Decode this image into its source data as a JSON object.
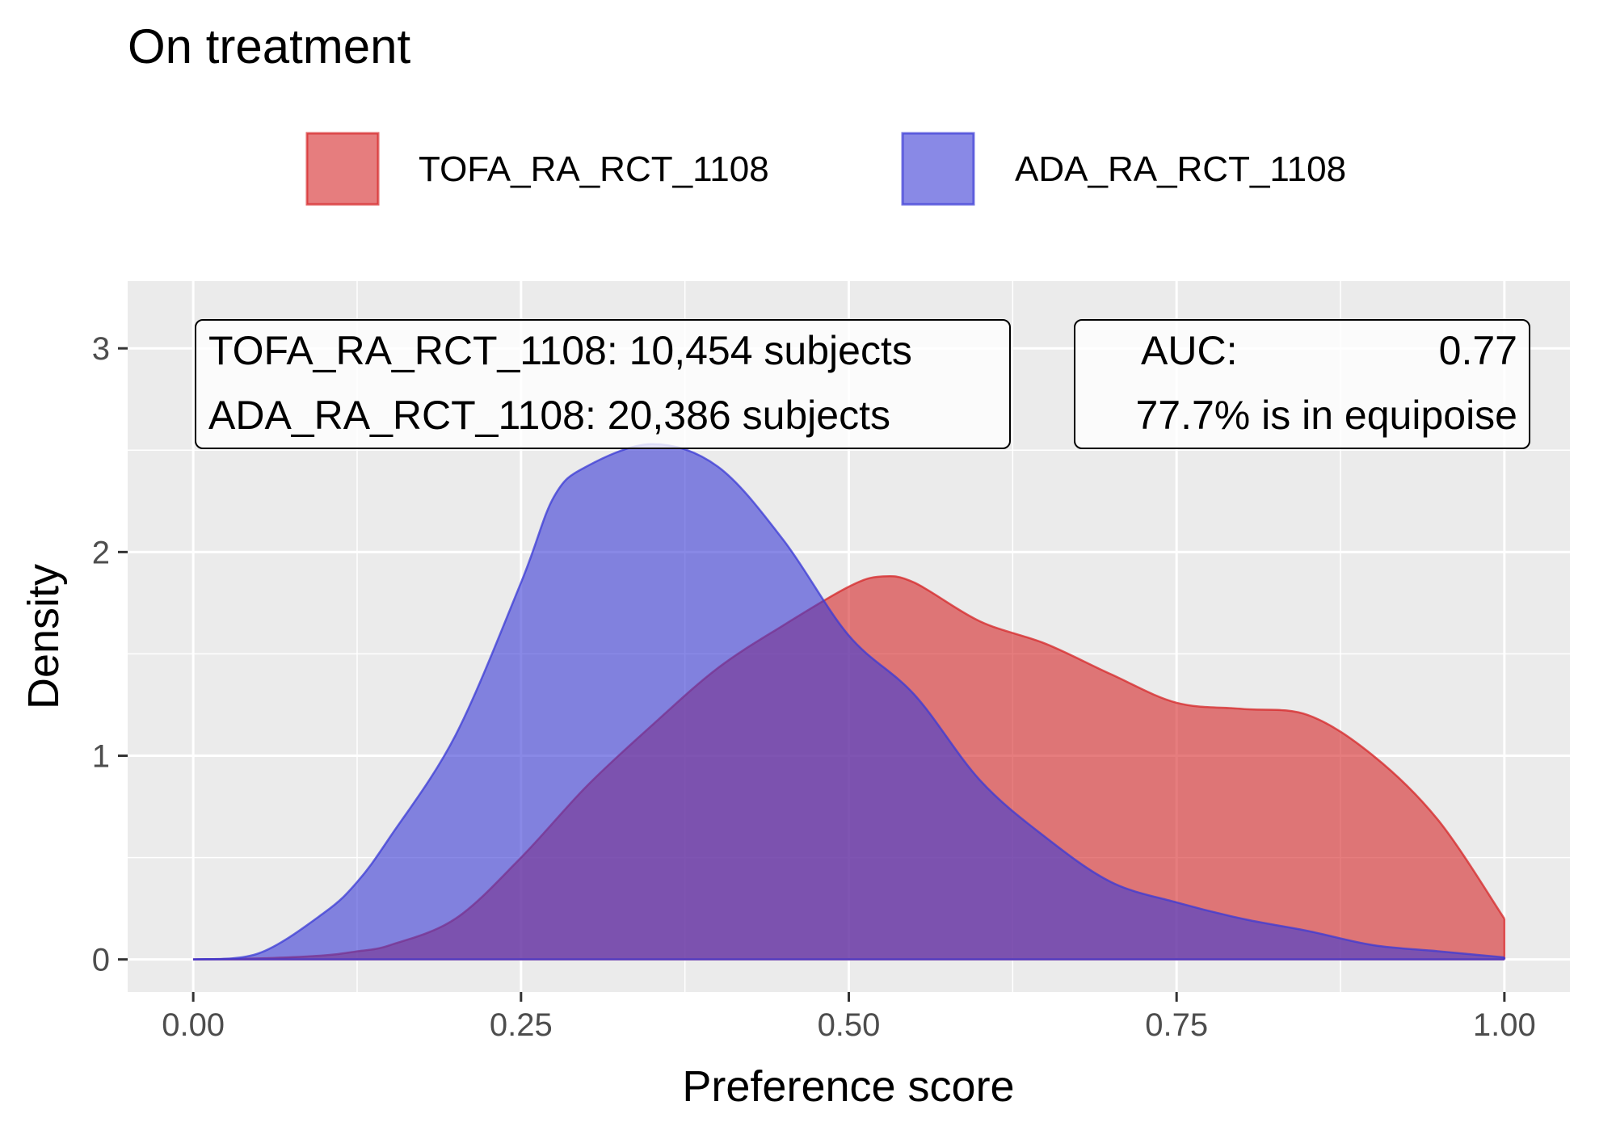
{
  "chart_data": {
    "type": "area",
    "title": "On treatment",
    "xlabel": "Preference score",
    "ylabel": "Density",
    "xlim": [
      -0.05,
      1.05
    ],
    "ylim": [
      -0.16,
      3.33
    ],
    "x_ticks": [
      0.0,
      0.25,
      0.5,
      0.75,
      1.0
    ],
    "x_tick_labels": [
      "0.00",
      "0.25",
      "0.50",
      "0.75",
      "1.00"
    ],
    "y_ticks": [
      0,
      1,
      2,
      3
    ],
    "y_tick_labels": [
      "0",
      "1",
      "2",
      "3"
    ],
    "grid": true,
    "legend_position": "top",
    "series": [
      {
        "name": "TOFA_RA_RCT_1108",
        "color": "#d62728",
        "x": [
          0,
          0.05,
          0.1,
          0.125,
          0.15,
          0.2,
          0.25,
          0.3,
          0.35,
          0.4,
          0.45,
          0.5,
          0.525,
          0.55,
          0.6,
          0.65,
          0.7,
          0.75,
          0.8,
          0.85,
          0.9,
          0.95,
          1.0
        ],
        "y": [
          0,
          0.005,
          0.02,
          0.04,
          0.07,
          0.2,
          0.5,
          0.85,
          1.15,
          1.43,
          1.64,
          1.83,
          1.88,
          1.85,
          1.66,
          1.55,
          1.4,
          1.26,
          1.23,
          1.2,
          1.0,
          0.68,
          0.2
        ]
      },
      {
        "name": "ADA_RA_RCT_1108",
        "color": "#3b3bd6",
        "x": [
          0,
          0.05,
          0.1,
          0.125,
          0.15,
          0.2,
          0.25,
          0.275,
          0.3,
          0.35,
          0.4,
          0.45,
          0.5,
          0.55,
          0.6,
          0.65,
          0.7,
          0.75,
          0.8,
          0.85,
          0.9,
          0.95,
          1.0
        ],
        "y": [
          0,
          0.03,
          0.23,
          0.38,
          0.6,
          1.1,
          1.85,
          2.27,
          2.42,
          2.53,
          2.42,
          2.06,
          1.59,
          1.3,
          0.88,
          0.6,
          0.38,
          0.28,
          0.2,
          0.14,
          0.07,
          0.04,
          0.01
        ]
      }
    ],
    "annotations": {
      "subjects_box": [
        "TOFA_RA_RCT_1108: 10,454 subjects",
        "ADA_RA_RCT_1108: 20,386 subjects"
      ],
      "auc_box": {
        "auc_label": "AUC:",
        "auc_value": "0.77",
        "equipoise": "77.7% is in equipoise"
      }
    }
  }
}
